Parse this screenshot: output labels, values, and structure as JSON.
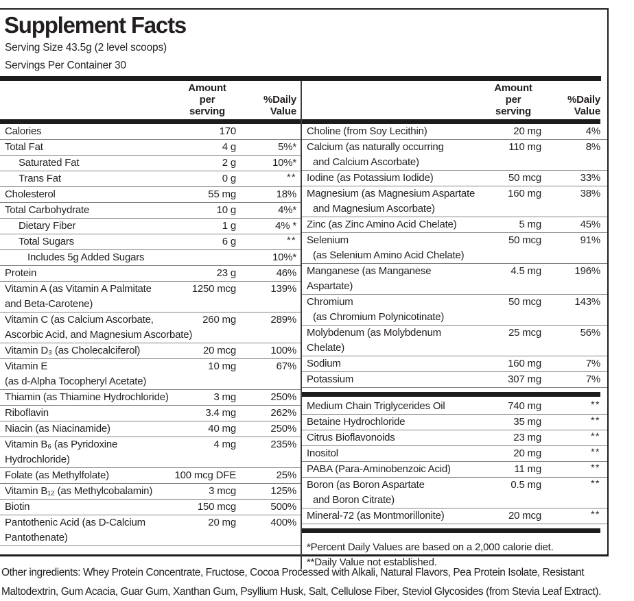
{
  "label": {
    "title": "Supplement Facts",
    "serving_size": "Serving Size 43.5g (2 level scoops)",
    "servings_per_container": "Servings Per Container 30",
    "header": {
      "amount": "Amount\nper\nserving",
      "daily_value": "%Daily\nValue"
    },
    "left_rows": [
      {
        "name": "Calories",
        "amount": "170",
        "dv": "",
        "indent": 0
      },
      {
        "name": "Total Fat",
        "amount": "4 g",
        "dv": "5%*",
        "indent": 0
      },
      {
        "name": "Saturated Fat",
        "amount": "2 g",
        "dv": "10%*",
        "indent": 1
      },
      {
        "name": "Trans Fat",
        "amount": "0 g",
        "dv": "**",
        "indent": 1
      },
      {
        "name": "Cholesterol",
        "amount": "55 mg",
        "dv": "18%",
        "indent": 0
      },
      {
        "name": "Total Carbohydrate",
        "amount": "10 g",
        "dv": "4%*",
        "indent": 0
      },
      {
        "name": "Dietary Fiber",
        "amount": "1 g",
        "dv": "4% *",
        "indent": 1
      },
      {
        "name": "Total Sugars",
        "amount": "6 g",
        "dv": "**",
        "indent": 1
      },
      {
        "name": "Includes 5g Added Sugars",
        "amount": "",
        "dv": "10%*",
        "indent": 2
      },
      {
        "name": "Protein",
        "amount": "23 g",
        "dv": "46%",
        "indent": 0
      },
      {
        "name": "Vitamin A (as Vitamin A Palmitate",
        "name2": "and Beta-Carotene)",
        "amount": "1250 mcg",
        "dv": "139%",
        "indent": 0
      },
      {
        "name": "Vitamin C (as Calcium Ascorbate,",
        "name2": "Ascorbic Acid, and Magnesium Ascorbate)",
        "amount": "260 mg",
        "dv": "289%",
        "indent": 0
      },
      {
        "name": "Vitamin D₃ (as Cholecalciferol)",
        "amount": "20 mcg",
        "dv": "100%",
        "indent": 0
      },
      {
        "name": "Vitamin E",
        "name2": "(as d-Alpha Tocopheryl Acetate)",
        "amount": "10 mg",
        "dv": "67%",
        "indent": 0
      },
      {
        "name": "Thiamin (as Thiamine Hydrochloride)",
        "amount": "3 mg",
        "dv": "250%",
        "indent": 0
      },
      {
        "name": "Riboflavin",
        "amount": "3.4 mg",
        "dv": "262%",
        "indent": 0
      },
      {
        "name": "Niacin (as Niacinamide)",
        "amount": "40 mg",
        "dv": "250%",
        "indent": 0
      },
      {
        "name": "Vitamin B₆ (as Pyridoxine",
        "name2": "Hydrochloride)",
        "amount": "4 mg",
        "dv": "235%",
        "indent": 0
      },
      {
        "name": "Folate (as Methylfolate)",
        "amount": "100 mcg DFE",
        "dv": "25%",
        "indent": 0
      },
      {
        "name": "Vitamin B₁₂ (as Methylcobalamin)",
        "amount": "3 mcg",
        "dv": "125%",
        "indent": 0
      },
      {
        "name": "Biotin",
        "amount": "150 mcg",
        "dv": "500%",
        "indent": 0
      },
      {
        "name": "Pantothenic Acid (as D-Calcium",
        "name2": "Pantothenate)",
        "amount": "20 mg",
        "dv": "400%",
        "indent": 0
      }
    ],
    "right_rows_main": [
      {
        "name": "Choline (from Soy Lecithin)",
        "amount": "20 mg",
        "dv": "4%"
      },
      {
        "name": "Calcium (as naturally occurring",
        "name2": "and Calcium Ascorbate)",
        "amount": "110 mg",
        "dv": "8%"
      },
      {
        "name": "Iodine (as Potassium Iodide)",
        "amount": "50 mcg",
        "dv": "33%"
      },
      {
        "name": "Magnesium (as Magnesium Aspartate",
        "name2": "and Magnesium Ascorbate)",
        "amount": "160 mg",
        "dv": "38%"
      },
      {
        "name": "Zinc (as Zinc Amino Acid Chelate)",
        "amount": "5 mg",
        "dv": "45%"
      },
      {
        "name": "Selenium",
        "name2": "(as Selenium Amino Acid Chelate)",
        "amount": "50 mcg",
        "dv": "91%"
      },
      {
        "name": "Manganese (as Manganese Aspartate)",
        "amount": "4.5 mg",
        "dv": "196%"
      },
      {
        "name": "Chromium",
        "name2": "(as Chromium Polynicotinate)",
        "amount": "50 mcg",
        "dv": "143%"
      },
      {
        "name": "Molybdenum (as Molybdenum Chelate)",
        "amount": "25 mcg",
        "dv": "56%"
      },
      {
        "name": "Sodium",
        "amount": "160 mg",
        "dv": "7%"
      },
      {
        "name": "Potassium",
        "amount": "307 mg",
        "dv": "7%"
      }
    ],
    "right_rows_other": [
      {
        "name": "Medium Chain Triglycerides Oil",
        "amount": "740 mg",
        "dv": "**"
      },
      {
        "name": "Betaine Hydrochloride",
        "amount": "35 mg",
        "dv": "**"
      },
      {
        "name": "Citrus Bioflavonoids",
        "amount": "23 mg",
        "dv": "**"
      },
      {
        "name": "Inositol",
        "amount": "20 mg",
        "dv": "**"
      },
      {
        "name": "PABA (Para-Aminobenzoic Acid)",
        "amount": "11 mg",
        "dv": "**"
      },
      {
        "name": "Boron (as Boron Aspartate",
        "name2": "and Boron Citrate)",
        "amount": "0.5 mg",
        "dv": "**"
      },
      {
        "name": "Mineral-72 (as Montmorillonite)",
        "amount": "20 mcg",
        "dv": "**"
      }
    ],
    "footnotes": {
      "line1": "*Percent Daily Values are based on a 2,000 calorie diet.",
      "line2": "**Daily Value not established."
    },
    "other_ingredients": "Other ingredients: Whey Protein Concentrate, Fructose, Cocoa Processed with Alkali, Natural Flavors, Pea Protein Isolate, Resistant Maltodextrin, Gum Acacia, Guar Gum, Xanthan Gum, Psyllium Husk, Salt, Cellulose Fiber, Steviol Glycosides (from Stevia Leaf Extract).",
    "colors": {
      "text": "#231f20",
      "thick_bar": "#1c1c1c",
      "thin_rule": "#818181",
      "background": "#ffffff"
    }
  }
}
